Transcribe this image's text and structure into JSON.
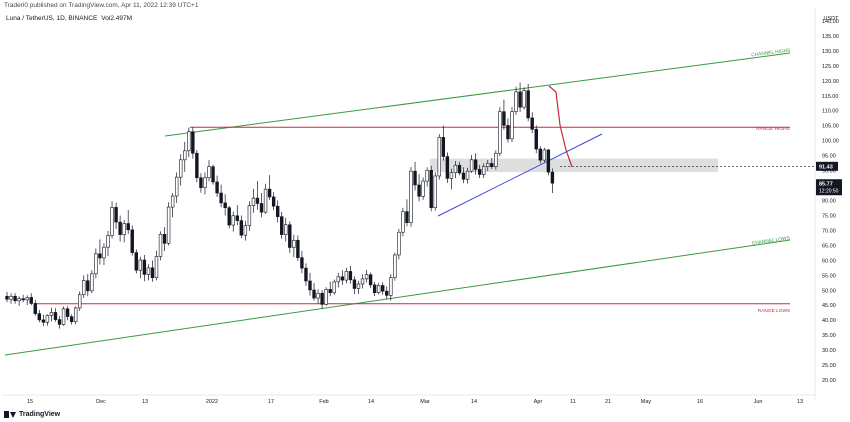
{
  "header": {
    "publish_text": "Traderi0 published on TradingView.com, Apr 11, 2022 12:39 UTC+1",
    "symbol": "Luna / TetherUS, 1D, BINANCE",
    "volume": "Vol2.497M"
  },
  "footer": {
    "brand": "TradingView"
  },
  "chart_data": {
    "type": "candlestick",
    "currency": "USDT",
    "ylim": [
      15,
      143
    ],
    "y_ticks": [
      "20.00",
      "25.00",
      "30.00",
      "35.00",
      "40.00",
      "45.00",
      "50.00",
      "55.00",
      "60.00",
      "65.00",
      "70.00",
      "75.00",
      "80.00",
      "85.00",
      "90.00",
      "95.00",
      "100.00",
      "105.00",
      "110.00",
      "115.00",
      "120.00",
      "125.00",
      "130.00",
      "135.00",
      "140.00"
    ],
    "x_ticks": [
      "15",
      "Dec",
      "13",
      "2022",
      "17",
      "Feb",
      "14",
      "Mar",
      "14",
      "Apr",
      "11",
      "21",
      "May",
      "16",
      "Jun",
      "13"
    ],
    "price_labels": {
      "last_level": {
        "value": "91.43",
        "price": 91.43
      },
      "current": {
        "value": "85.77",
        "countdown": "12:20:50",
        "price": 85.77
      }
    },
    "annotations": {
      "channel_highs": "CHANNEL HIGHS",
      "channel_lows": "CHANNEL LOWS",
      "range_highs": "RANGE HIGHS",
      "range_lows": "RANGE LOWS"
    },
    "levels": {
      "range_high": 104.5,
      "range_low": 45.5
    },
    "zone": {
      "low": 89.5,
      "high": 94
    },
    "colors": {
      "up": "#ffffff",
      "down": "#131722",
      "channel": "#3a9a45",
      "range": "#c9283e",
      "trend": "#3b49df",
      "zone": "#d6d6d6"
    },
    "candles": [
      [
        48,
        49.5,
        46,
        47
      ],
      [
        47,
        49,
        45.5,
        48
      ],
      [
        48,
        49,
        45.5,
        46.5
      ],
      [
        46.5,
        48,
        44.8,
        47.2
      ],
      [
        47.2,
        48.5,
        46,
        46.8
      ],
      [
        46.8,
        48.3,
        45,
        47.6
      ],
      [
        47.6,
        49,
        45,
        45.6
      ],
      [
        45.6,
        46.8,
        41.5,
        42.2
      ],
      [
        42.2,
        43.4,
        39.3,
        40.1
      ],
      [
        40.1,
        41.8,
        38,
        39.3
      ],
      [
        39.3,
        42,
        38.2,
        41.6
      ],
      [
        41.6,
        44.2,
        39.6,
        42.6
      ],
      [
        42.6,
        44,
        39.5,
        40.2
      ],
      [
        40.2,
        41.4,
        37.2,
        38.6
      ],
      [
        38.6,
        44.6,
        38.2,
        43.8
      ],
      [
        43.8,
        44.6,
        40,
        41.2
      ],
      [
        41.2,
        41.9,
        38.5,
        39.5
      ],
      [
        39.5,
        44.6,
        38.6,
        44.1
      ],
      [
        44.1,
        49.6,
        43.1,
        48.5
      ],
      [
        48.5,
        55,
        47.5,
        53.2
      ],
      [
        53.2,
        55.4,
        48,
        49.8
      ],
      [
        49.8,
        56.7,
        49,
        55.5
      ],
      [
        55.5,
        64,
        54,
        62.2
      ],
      [
        62.2,
        67,
        58.6,
        60.8
      ],
      [
        60.8,
        65.7,
        58.4,
        64.4
      ],
      [
        64.4,
        69.8,
        61.4,
        68.3
      ],
      [
        68.3,
        79.8,
        67.3,
        77.7
      ],
      [
        77.7,
        79.3,
        70.5,
        72.8
      ],
      [
        72.8,
        75,
        66.3,
        68.6
      ],
      [
        68.6,
        73.5,
        66,
        72.3
      ],
      [
        72.3,
        76.8,
        68.8,
        70.2
      ],
      [
        70.2,
        71.7,
        61.6,
        62.6
      ],
      [
        62.6,
        63.7,
        55.6,
        56.7
      ],
      [
        56.7,
        61.2,
        54,
        60.1
      ],
      [
        60.1,
        61.8,
        53,
        55.3
      ],
      [
        55.3,
        58.7,
        53.3,
        57.5
      ],
      [
        57.5,
        60,
        52.8,
        54.2
      ],
      [
        54.2,
        63.2,
        53.3,
        61.3
      ],
      [
        61.3,
        69.7,
        60,
        68.7
      ],
      [
        68.7,
        71.1,
        63.1,
        65.7
      ],
      [
        65.7,
        79.4,
        65,
        77.8
      ],
      [
        77.8,
        82.5,
        74.4,
        81.5
      ],
      [
        81.5,
        89.4,
        79.2,
        87.8
      ],
      [
        87.8,
        95.5,
        85,
        93.6
      ],
      [
        93.6,
        99.6,
        89.6,
        96.6
      ],
      [
        96.6,
        104.4,
        94.5,
        103
      ],
      [
        103,
        104.5,
        94,
        95.8
      ],
      [
        95.8,
        96.9,
        86.1,
        87.6
      ],
      [
        87.6,
        89.1,
        82.6,
        84.3
      ],
      [
        84.3,
        89.4,
        82,
        87.6
      ],
      [
        87.6,
        93.5,
        86.4,
        91.3
      ],
      [
        91.3,
        91.9,
        85.3,
        86.2
      ],
      [
        86.2,
        88.3,
        81.2,
        82.5
      ],
      [
        82.5,
        85.3,
        77.8,
        79.2
      ],
      [
        79.2,
        82.1,
        75,
        77.6
      ],
      [
        77.6,
        78.2,
        70.7,
        71.8
      ],
      [
        71.8,
        76.3,
        69.6,
        74.9
      ],
      [
        74.9,
        78.5,
        71.8,
        73.3
      ],
      [
        73.3,
        75,
        67.5,
        68.4
      ],
      [
        68.4,
        73.2,
        66.6,
        71.6
      ],
      [
        71.6,
        79.7,
        69.8,
        78.3
      ],
      [
        78.3,
        83.9,
        75.9,
        80.8
      ],
      [
        80.8,
        86.5,
        76.9,
        79
      ],
      [
        79,
        82.5,
        74.4,
        76.1
      ],
      [
        76.1,
        85.6,
        75.6,
        83.8
      ],
      [
        83.8,
        88.5,
        80.2,
        81.2
      ],
      [
        81.2,
        82.8,
        76.7,
        78.1
      ],
      [
        78.1,
        80,
        72.7,
        74.6
      ],
      [
        74.6,
        76.2,
        67.2,
        68.6
      ],
      [
        68.6,
        74.2,
        66.3,
        71.9
      ],
      [
        71.9,
        73,
        62.5,
        64.3
      ],
      [
        64.3,
        68.6,
        61.1,
        66.7
      ],
      [
        66.7,
        68.3,
        59.8,
        60.9
      ],
      [
        60.9,
        63.2,
        55.7,
        57.4
      ],
      [
        57.4,
        59,
        51.5,
        53.1
      ],
      [
        53.1,
        55.8,
        48.2,
        50.1
      ],
      [
        50.1,
        52.4,
        46.6,
        47.4
      ],
      [
        47.4,
        50.3,
        45.6,
        49
      ],
      [
        49,
        50,
        43.8,
        45.3
      ],
      [
        45.3,
        51,
        44.9,
        50.3
      ],
      [
        50.3,
        52.9,
        48,
        49.2
      ],
      [
        49.2,
        53.6,
        48.5,
        52.8
      ],
      [
        52.8,
        55.8,
        51,
        54.5
      ],
      [
        54.5,
        56.7,
        51.8,
        53.4
      ],
      [
        53.4,
        57.5,
        52.3,
        56.3
      ],
      [
        56.3,
        58.1,
        52.2,
        53.5
      ],
      [
        53.5,
        54.7,
        48.7,
        50.6
      ],
      [
        50.6,
        53.2,
        48.8,
        52.1
      ],
      [
        52.1,
        55.4,
        50.6,
        53.8
      ],
      [
        53.8,
        56.8,
        52.6,
        55.2
      ],
      [
        55.2,
        55.9,
        50.7,
        51.8
      ],
      [
        51.8,
        52.8,
        48.1,
        49.2
      ],
      [
        49.2,
        52.5,
        48.6,
        51.6
      ],
      [
        51.6,
        52.7,
        48.5,
        49.7
      ],
      [
        49.7,
        51.3,
        47,
        48.3
      ],
      [
        48.3,
        55.4,
        46.6,
        54.2
      ],
      [
        54.2,
        62.6,
        53.2,
        61.8
      ],
      [
        61.8,
        70.5,
        60.3,
        69.4
      ],
      [
        69.4,
        77.6,
        68,
        76.3
      ],
      [
        76.3,
        80.4,
        71.4,
        72.6
      ],
      [
        72.6,
        91.2,
        71.2,
        89.8
      ],
      [
        89.8,
        92.9,
        83.4,
        85.2
      ],
      [
        85.2,
        88.8,
        79.7,
        81.4
      ],
      [
        81.4,
        87.7,
        80.2,
        86.5
      ],
      [
        86.5,
        91.1,
        84.7,
        90.1
      ],
      [
        90.1,
        91.6,
        76.4,
        77.6
      ],
      [
        77.6,
        89.4,
        76.6,
        88.2
      ],
      [
        88.2,
        102.2,
        87,
        101.1
      ],
      [
        101.1,
        105,
        93.3,
        94.7
      ],
      [
        94.7,
        96.1,
        85.9,
        87.4
      ],
      [
        87.4,
        90.6,
        83.7,
        89.3
      ],
      [
        89.3,
        93.2,
        87.5,
        91.8
      ],
      [
        91.8,
        92.9,
        88.4,
        89.2
      ],
      [
        89.2,
        91.1,
        85.8,
        87.1
      ],
      [
        87.1,
        90.9,
        85.7,
        89.8
      ],
      [
        89.8,
        95.2,
        89.2,
        93.6
      ],
      [
        93.6,
        95.8,
        88.7,
        90.4
      ],
      [
        90.4,
        91.9,
        87.5,
        88.7
      ],
      [
        88.7,
        92.4,
        87.5,
        91.3
      ],
      [
        91.3,
        93.6,
        89.9,
        92.4
      ],
      [
        92.4,
        94.2,
        90.5,
        91.3
      ],
      [
        91.3,
        96.8,
        90.3,
        95.8
      ],
      [
        95.8,
        111.2,
        94.8,
        109.7
      ],
      [
        109.7,
        113.7,
        103.6,
        105.1
      ],
      [
        105.1,
        107.4,
        99.4,
        100.6
      ],
      [
        100.6,
        111.2,
        99.5,
        109.7
      ],
      [
        109.7,
        118,
        108.6,
        116.3
      ],
      [
        116.3,
        119.4,
        109.6,
        111.2
      ],
      [
        111.2,
        117.8,
        110.4,
        116.7
      ],
      [
        116.7,
        119,
        106.5,
        107.6
      ],
      [
        107.6,
        109.5,
        102.5,
        103.8
      ],
      [
        103.8,
        105.1,
        95.8,
        97.2
      ],
      [
        97.2,
        98.1,
        92.4,
        93.5
      ],
      [
        93.5,
        97.6,
        92.9,
        96.9
      ],
      [
        96.9,
        97.2,
        88.4,
        89.5
      ],
      [
        89.5,
        90.7,
        82.5,
        85.8
      ]
    ]
  }
}
